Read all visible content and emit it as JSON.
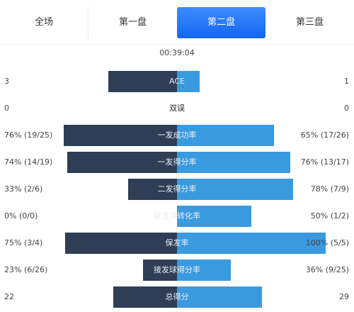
{
  "tabs": [
    {
      "label": "全场"
    },
    {
      "label": "第一盘"
    },
    {
      "label": "第二盘"
    },
    {
      "label": "第三盘"
    }
  ],
  "duration": "00:39:04",
  "stats": [
    {
      "name": "ACE",
      "left": "3",
      "right": "1",
      "left_ratio": 0.46,
      "right_ratio": 0.15
    },
    {
      "name": "双误",
      "left": "0",
      "right": "0",
      "left_ratio": 0,
      "right_ratio": 0
    },
    {
      "name": "一发成功率",
      "left": "76% (19/25)",
      "right": "65% (17/26)",
      "left_ratio": 0.76,
      "right_ratio": 0.65
    },
    {
      "name": "一发得分率",
      "left": "74% (14/19)",
      "right": "76% (13/17)",
      "left_ratio": 0.74,
      "right_ratio": 0.76
    },
    {
      "name": "二发得分率",
      "left": "33% (2/6)",
      "right": "78% (7/9)",
      "left_ratio": 0.33,
      "right_ratio": 0.78
    },
    {
      "name": "破发点转化率",
      "left": "0% (0/0)",
      "right": "50% (1/2)",
      "left_ratio": 0,
      "right_ratio": 0.5
    },
    {
      "name": "保发率",
      "left": "75% (3/4)",
      "right": "100% (5/5)",
      "left_ratio": 0.75,
      "right_ratio": 1.0
    },
    {
      "name": "接发球得分率",
      "left": "23% (6/26)",
      "right": "36% (9/25)",
      "left_ratio": 0.23,
      "right_ratio": 0.36
    },
    {
      "name": "总得分",
      "left": "22",
      "right": "29",
      "left_ratio": 0.43,
      "right_ratio": 0.57
    }
  ]
}
